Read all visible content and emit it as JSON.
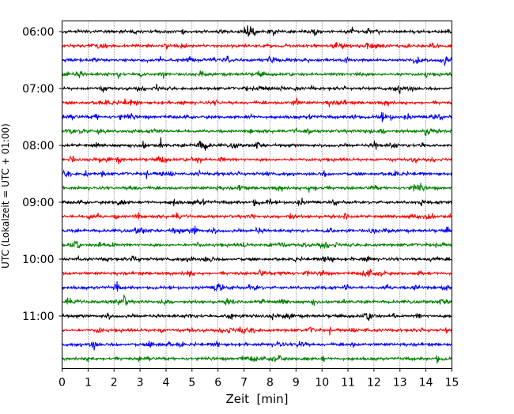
{
  "chart_data": {
    "type": "line",
    "subtype": "helicorder-seismogram",
    "xlabel": "Zeit  [min]",
    "ylabel": "UTC (Lokalzeit = UTC + 01:00)",
    "xlim": [
      0,
      15
    ],
    "x_ticks": [
      "0",
      "1",
      "2",
      "3",
      "4",
      "5",
      "6",
      "7",
      "8",
      "9",
      "10",
      "11",
      "12",
      "13",
      "14",
      "15"
    ],
    "y_tick_labels": [
      "06:00",
      "07:00",
      "08:00",
      "09:00",
      "10:00",
      "11:00"
    ],
    "y_tick_trace_index": [
      0,
      4,
      8,
      12,
      16,
      20
    ],
    "grid": {
      "vertical": true,
      "style": "dotted"
    },
    "trace_colors": [
      "#000000",
      "#ff0000",
      "#0000ff",
      "#008000"
    ],
    "traces": [
      {
        "start": "06:00"
      },
      {
        "start": "06:15"
      },
      {
        "start": "06:30"
      },
      {
        "start": "06:45"
      },
      {
        "start": "07:00"
      },
      {
        "start": "07:15"
      },
      {
        "start": "07:30"
      },
      {
        "start": "07:45"
      },
      {
        "start": "08:00"
      },
      {
        "start": "08:15"
      },
      {
        "start": "08:30"
      },
      {
        "start": "08:45"
      },
      {
        "start": "09:00"
      },
      {
        "start": "09:15"
      },
      {
        "start": "09:30"
      },
      {
        "start": "09:45"
      },
      {
        "start": "10:00"
      },
      {
        "start": "10:15"
      },
      {
        "start": "10:30"
      },
      {
        "start": "10:45"
      },
      {
        "start": "11:00"
      },
      {
        "start": "11:15"
      },
      {
        "start": "11:30"
      },
      {
        "start": "11:45"
      }
    ]
  }
}
